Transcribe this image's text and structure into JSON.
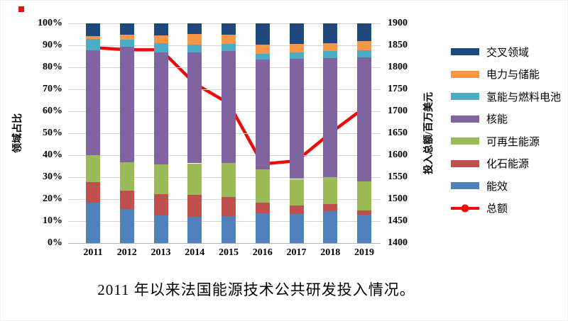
{
  "decor": {
    "red_dot_color": "#e8130c"
  },
  "caption": "2011 年以来法国能源技术公共研发投入情况。",
  "chart_data": {
    "type": "bar",
    "subtype": "stacked-bar-with-line",
    "title": "2011 年以来法国能源技术公共研发投入情况。",
    "categories": [
      "2011",
      "2012",
      "2013",
      "2014",
      "2015",
      "2016",
      "2017",
      "2018",
      "2019"
    ],
    "series": [
      {
        "key": "efficiency",
        "name": "能效",
        "color": "#4F81BD",
        "values": [
          18.4,
          15.4,
          12.5,
          12.1,
          12.4,
          13.5,
          13.1,
          14.4,
          13.0
        ]
      },
      {
        "key": "fossil",
        "name": "化石能源",
        "color": "#C0504D",
        "values": [
          9.2,
          8.4,
          9.7,
          9.8,
          8.7,
          4.8,
          4.1,
          3.3,
          2.0
        ]
      },
      {
        "key": "renewables",
        "name": "可再生能源",
        "color": "#9BBB59",
        "values": [
          12.4,
          12.9,
          13.6,
          14.4,
          15.5,
          15.2,
          12.0,
          12.3,
          13.0
        ]
      },
      {
        "key": "nuclear",
        "name": "核能",
        "color": "#8064A2",
        "values": [
          47.9,
          52.8,
          51.0,
          50.5,
          50.7,
          49.9,
          54.8,
          54.3,
          56.5
        ]
      },
      {
        "key": "hydrogen-fuel-cells",
        "name": "氢能与燃料电池",
        "color": "#4BACC6",
        "values": [
          5.1,
          3.2,
          4.3,
          3.4,
          3.3,
          2.8,
          2.7,
          3.0,
          3.2
        ]
      },
      {
        "key": "power-storage",
        "name": "电力与储能",
        "color": "#F79646",
        "values": [
          1.3,
          2.2,
          3.5,
          4.9,
          4.3,
          4.0,
          3.9,
          3.7,
          4.1
        ]
      },
      {
        "key": "cross-cutting",
        "name": "交叉领域",
        "color": "#1F497D",
        "values": [
          5.7,
          5.1,
          5.4,
          4.9,
          5.1,
          9.8,
          9.4,
          9.0,
          8.2
        ]
      }
    ],
    "line_series": {
      "key": "total",
      "name": "总额",
      "color": "#EE0B0B",
      "values": [
        1845,
        1840,
        1840,
        1763,
        1718,
        1580,
        1587,
        1650,
        1708
      ]
    },
    "left_axis": {
      "label": "领域占比",
      "min": 0,
      "max": 100,
      "tick_step": 10,
      "tick_suffix": "%"
    },
    "right_axis": {
      "label": "投入总额/百万美元",
      "min": 1400,
      "max": 1900,
      "tick_step": 50
    },
    "legend_order_top_to_bottom": [
      "交叉领域",
      "电力与储能",
      "氢能与燃料电池",
      "核能",
      "可再生能源",
      "化石能源",
      "能效",
      "总额"
    ],
    "grid": "horizontal",
    "legend_position": "right"
  }
}
